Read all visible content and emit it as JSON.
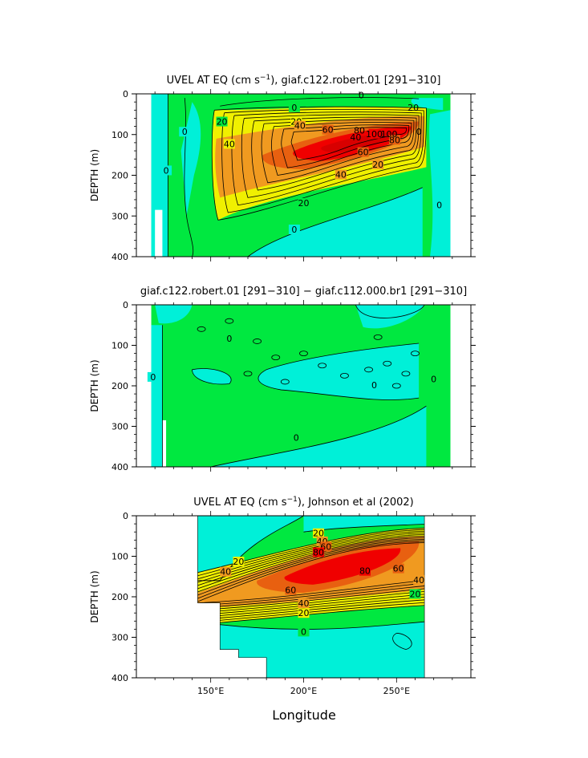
{
  "chart_data": {
    "type": "contour",
    "xlabel": "Longitude",
    "x_ticks": [
      "150°E",
      "200°E",
      "250°E"
    ],
    "x_tick_values": [
      150,
      200,
      250
    ],
    "xlim": [
      110,
      290
    ],
    "colors": {
      "neg": "#00f0d8",
      "c0": "#00e840",
      "c20": "#f0f000",
      "c40": "#f09a20",
      "c60": "#e86010",
      "c80": "#f00000",
      "land": "#ffffff",
      "bg": "#ffffff"
    },
    "panels": [
      {
        "title_parts": [
          "UVEL AT EQ (cm s",
          "−1",
          "), giaf.c122.robert.01 [291−310]"
        ],
        "ylabel": "DEPTH (m)",
        "y_ticks": [
          "0",
          "100",
          "200",
          "300",
          "400"
        ],
        "ylim": [
          0,
          400
        ],
        "contour_labels": [
          "0",
          "20",
          "40",
          "60",
          "80",
          "100",
          "0",
          "20",
          "40",
          "60",
          "80",
          "100",
          "20",
          "40",
          "0",
          "20",
          "40",
          "0",
          "20",
          "0",
          "0",
          "0"
        ],
        "levels_cm_s": [
          0,
          20,
          40,
          60,
          80,
          100
        ],
        "core": {
          "lon": 225,
          "depth_m": 115,
          "max_cm_s": 110
        }
      },
      {
        "title_parts": [
          "giaf.c122.robert.01 [291−310] − giaf.c112.000.br1 [291−310]"
        ],
        "ylabel": "DEPTH (m)",
        "y_ticks": [
          "0",
          "100",
          "200",
          "300",
          "400"
        ],
        "ylim": [
          0,
          400
        ],
        "contour_labels": [
          "0",
          "0",
          "0",
          "0",
          "0"
        ],
        "levels_cm_s": [
          0
        ]
      },
      {
        "title_parts": [
          "UVEL AT EQ (cm s",
          "−1",
          "), Johnson et al (2002)"
        ],
        "ylabel": "DEPTH (m)",
        "y_ticks": [
          "0",
          "100",
          "200",
          "300",
          "400"
        ],
        "ylim": [
          0,
          400
        ],
        "contour_labels": [
          "20",
          "40",
          "60",
          "80",
          "80",
          "60",
          "40",
          "20",
          "60",
          "40",
          "20",
          "0",
          "20",
          "40"
        ],
        "levels_cm_s": [
          0,
          20,
          40,
          60,
          80
        ],
        "core": {
          "lon": 220,
          "depth_m": 110,
          "max_cm_s": 100
        }
      }
    ]
  }
}
